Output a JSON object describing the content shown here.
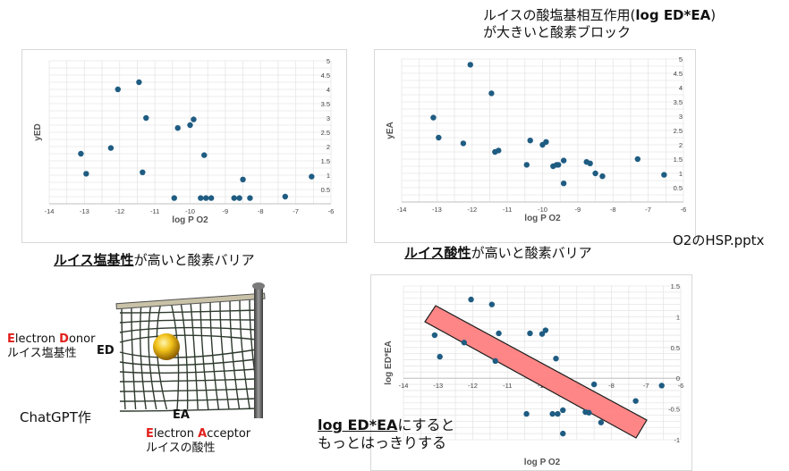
{
  "slide": {
    "top_title_line1": "ルイスの酸塩基相互作用(",
    "top_title_bold": "log ED*EA",
    "top_title_line1_end": ")",
    "top_title_line2": "が大きいと酸素ブロック",
    "source_file": "O2のHSP.pptx",
    "caption_left_bold": "ルイス塩基性",
    "caption_left_rest": "が高いと酸素バリア",
    "caption_right_bold": "ルイス酸性",
    "caption_right_rest": "が高いと酸素バリア",
    "bottom_note_bold": "log ED*EA",
    "bottom_note_line1_rest": "にすると",
    "bottom_note_line2": "もっとはっきりする",
    "chatgpt_label": "ChatGPT作",
    "illus_label_ed": "ED",
    "illus_label_ea": "EA",
    "donor": {
      "l1": "E",
      "r1": "lectron ",
      "l2": "D",
      "r2": "onor",
      "jp": "ルイス塩基性"
    },
    "acceptor": {
      "l1": "E",
      "r1": "lectron ",
      "l2": "A",
      "r2": "cceptor",
      "jp": "ルイスの酸性"
    }
  },
  "colors": {
    "point": "#1f5c82",
    "band_fill": "#ff8080",
    "band_stroke": "#111111",
    "accent_red": "#e0201b",
    "grid": "#e6e6e6"
  },
  "chart_data": [
    {
      "type": "scatter",
      "xlabel": "log P O2",
      "ylabel": "yED",
      "xlim": [
        -14,
        -6
      ],
      "ylim": [
        0,
        5
      ],
      "x_ticks": [
        "-14",
        "-13",
        "-12",
        "-11",
        "-10",
        "-9",
        "-8",
        "-7",
        "-6"
      ],
      "y_ticks": [
        "5",
        "4.5",
        "4",
        "3.5",
        "3",
        "2.5",
        "2",
        "1.5",
        "1",
        "0.5"
      ],
      "grid": true,
      "points": [
        {
          "x": -13.1,
          "y": 1.75
        },
        {
          "x": -12.95,
          "y": 1.05
        },
        {
          "x": -12.25,
          "y": 1.95
        },
        {
          "x": -12.05,
          "y": 4.0
        },
        {
          "x": -11.45,
          "y": 4.25
        },
        {
          "x": -11.35,
          "y": 1.1
        },
        {
          "x": -11.25,
          "y": 3.0
        },
        {
          "x": -10.45,
          "y": 0.2
        },
        {
          "x": -10.35,
          "y": 2.65
        },
        {
          "x": -10.0,
          "y": 2.75
        },
        {
          "x": -9.9,
          "y": 2.95
        },
        {
          "x": -9.7,
          "y": 0.2
        },
        {
          "x": -9.6,
          "y": 1.7
        },
        {
          "x": -9.55,
          "y": 0.2
        },
        {
          "x": -9.4,
          "y": 0.2
        },
        {
          "x": -8.75,
          "y": 0.2
        },
        {
          "x": -8.6,
          "y": 0.2
        },
        {
          "x": -8.5,
          "y": 0.85
        },
        {
          "x": -8.3,
          "y": 0.2
        },
        {
          "x": -7.3,
          "y": 0.25
        },
        {
          "x": -6.55,
          "y": 0.95
        }
      ]
    },
    {
      "type": "scatter",
      "xlabel": "log P O2",
      "ylabel": "yEA",
      "xlim": [
        -14,
        -6
      ],
      "ylim": [
        0,
        5
      ],
      "x_ticks": [
        "-14",
        "-13",
        "-12",
        "-11",
        "-10",
        "-9",
        "-8",
        "-7",
        "-6"
      ],
      "y_ticks": [
        "5",
        "4.5",
        "4",
        "3.5",
        "3",
        "2.5",
        "2",
        "1.5",
        "1",
        "0.5"
      ],
      "grid": true,
      "points": [
        {
          "x": -13.1,
          "y": 2.95
        },
        {
          "x": -12.95,
          "y": 2.25
        },
        {
          "x": -12.25,
          "y": 2.05
        },
        {
          "x": -12.05,
          "y": 4.8
        },
        {
          "x": -11.45,
          "y": 3.8
        },
        {
          "x": -11.35,
          "y": 1.75
        },
        {
          "x": -11.25,
          "y": 1.8
        },
        {
          "x": -10.45,
          "y": 1.3
        },
        {
          "x": -10.35,
          "y": 2.15
        },
        {
          "x": -10.0,
          "y": 2.0
        },
        {
          "x": -9.9,
          "y": 2.1
        },
        {
          "x": -9.7,
          "y": 1.25
        },
        {
          "x": -9.6,
          "y": 1.3
        },
        {
          "x": -9.55,
          "y": 1.3
        },
        {
          "x": -9.4,
          "y": 1.45
        },
        {
          "x": -9.4,
          "y": 0.65
        },
        {
          "x": -8.75,
          "y": 1.4
        },
        {
          "x": -8.65,
          "y": 1.35
        },
        {
          "x": -8.5,
          "y": 1.0
        },
        {
          "x": -8.3,
          "y": 0.9
        },
        {
          "x": -7.3,
          "y": 1.5
        },
        {
          "x": -6.55,
          "y": 0.95
        }
      ]
    },
    {
      "type": "scatter",
      "xlabel": "log P O2",
      "ylabel": "log ED*EA",
      "xlim": [
        -14,
        -6
      ],
      "ylim": [
        -1,
        1.5
      ],
      "x_ticks": [
        "-14",
        "-13",
        "-12",
        "-11",
        "-10",
        "-9",
        "-8",
        "-7",
        "-6"
      ],
      "y_ticks": [
        "1.5",
        "1",
        "0.5",
        "0",
        "-0.5",
        "-1"
      ],
      "grid": true,
      "points": [
        {
          "x": -13.1,
          "y": 0.7
        },
        {
          "x": -12.95,
          "y": 0.35
        },
        {
          "x": -12.25,
          "y": 0.58
        },
        {
          "x": -12.05,
          "y": 1.28
        },
        {
          "x": -11.45,
          "y": 1.2
        },
        {
          "x": -11.35,
          "y": 0.28
        },
        {
          "x": -11.25,
          "y": 0.73
        },
        {
          "x": -10.45,
          "y": -0.58
        },
        {
          "x": -10.35,
          "y": 0.73
        },
        {
          "x": -10.0,
          "y": 0.72
        },
        {
          "x": -9.9,
          "y": 0.78
        },
        {
          "x": -9.7,
          "y": -0.58
        },
        {
          "x": -9.6,
          "y": 0.32
        },
        {
          "x": -9.55,
          "y": -0.58
        },
        {
          "x": -9.4,
          "y": -0.52
        },
        {
          "x": -9.4,
          "y": -0.9
        },
        {
          "x": -8.75,
          "y": -0.55
        },
        {
          "x": -8.65,
          "y": -0.56
        },
        {
          "x": -8.5,
          "y": -0.1
        },
        {
          "x": -8.3,
          "y": -0.72
        },
        {
          "x": -7.3,
          "y": -0.37
        },
        {
          "x": -6.55,
          "y": -0.12
        }
      ]
    }
  ]
}
